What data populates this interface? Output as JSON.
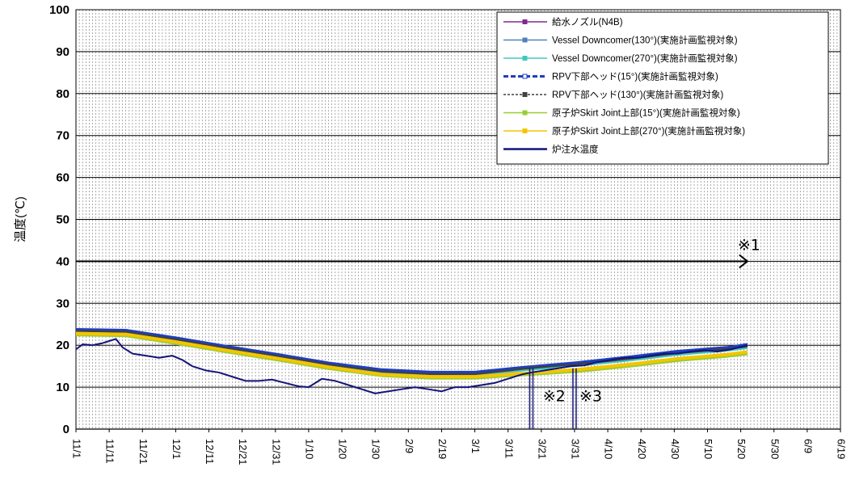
{
  "chart_data": {
    "type": "line",
    "ylabel": "温度(℃)",
    "xlabel": "",
    "ylim": [
      0,
      100
    ],
    "yticks": [
      0,
      10,
      20,
      30,
      40,
      50,
      60,
      70,
      80,
      90,
      100
    ],
    "xlim_days": [
      0,
      230
    ],
    "xtick_labels": [
      "11/1",
      "11/11",
      "11/21",
      "12/1",
      "12/11",
      "12/21",
      "12/31",
      "1/10",
      "1/20",
      "1/30",
      "2/9",
      "2/19",
      "3/1",
      "3/11",
      "3/21",
      "3/31",
      "4/10",
      "4/20",
      "4/30",
      "5/10",
      "5/20",
      "5/30",
      "6/9",
      "6/19"
    ],
    "grid": "vertical daily, horizontal every 10",
    "legend_position": "top-right",
    "series": [
      {
        "name": "給水ノズル(N4B)",
        "color": "#7f2a8c",
        "x": [
          "11/1",
          "11/16",
          "12/1",
          "12/16",
          "1/1",
          "1/16",
          "2/1",
          "2/16",
          "3/1",
          "3/16",
          "4/1",
          "4/16",
          "5/1",
          "5/16",
          "5/22"
        ],
        "y": [
          23.5,
          23.3,
          21.5,
          19.5,
          17.5,
          15.5,
          13.8,
          13.2,
          13.2,
          14.5,
          15.6,
          16.8,
          18.2,
          19.2,
          19.8
        ]
      },
      {
        "name": "Vessel Downcomer(130°)(実施計画監視対象)",
        "color": "#4f81bd",
        "x": [
          "11/1",
          "11/16",
          "12/1",
          "12/16",
          "1/1",
          "1/16",
          "2/1",
          "2/16",
          "3/1",
          "3/16",
          "4/1",
          "4/16",
          "5/1",
          "5/16",
          "5/22"
        ],
        "y": [
          23.2,
          23.0,
          21.2,
          19.2,
          17.2,
          15.2,
          13.5,
          13.0,
          13.0,
          14.2,
          15.3,
          16.5,
          17.9,
          18.9,
          19.5
        ]
      },
      {
        "name": "Vessel Downcomer(270°)(実施計画監視対象)",
        "color": "#40c8c0",
        "x": [
          "11/1",
          "11/16",
          "12/1",
          "12/16",
          "1/1",
          "1/16",
          "2/1",
          "2/16",
          "3/1",
          "3/16",
          "4/1",
          "4/16",
          "5/1",
          "5/16",
          "5/22"
        ],
        "y": [
          23.0,
          22.8,
          21.0,
          19.0,
          17.0,
          15.0,
          13.3,
          12.8,
          12.8,
          14.0,
          15.1,
          16.3,
          17.7,
          18.7,
          19.3
        ]
      },
      {
        "name": "RPV下部ヘッド(15°)(実施計画監視対象)",
        "color": "#1f3fbf",
        "x": [
          "11/1",
          "11/16",
          "12/1",
          "12/16",
          "1/1",
          "1/16",
          "2/1",
          "2/16",
          "3/1",
          "3/16",
          "4/1",
          "4/16",
          "5/1",
          "5/16",
          "5/22"
        ],
        "y": [
          23.8,
          23.6,
          21.8,
          19.8,
          17.8,
          15.8,
          14.2,
          13.6,
          13.6,
          14.8,
          15.9,
          17.2,
          18.6,
          19.5,
          20.2
        ]
      },
      {
        "name": "RPV下部ヘッド(130°)(実施計画監視対象)",
        "color": "#404040",
        "x": [
          "11/1",
          "11/16",
          "12/1",
          "12/16",
          "1/1",
          "1/16",
          "2/1",
          "2/16",
          "3/1",
          "3/16",
          "4/1",
          "4/16",
          "5/1",
          "5/16",
          "5/22"
        ],
        "y": [
          23.4,
          23.2,
          21.4,
          19.4,
          17.4,
          15.4,
          13.7,
          13.1,
          13.1,
          14.4,
          15.5,
          16.7,
          18.1,
          19.1,
          19.7
        ]
      },
      {
        "name": "原子炉Skirt Joint上部(15°)(実施計画監視対象)",
        "color": "#9acd32",
        "x": [
          "11/1",
          "11/16",
          "12/1",
          "12/16",
          "1/1",
          "1/16",
          "2/1",
          "2/16",
          "3/1",
          "3/16",
          "4/1",
          "4/16",
          "5/1",
          "5/16",
          "5/22"
        ],
        "y": [
          22.5,
          22.3,
          20.5,
          18.5,
          16.5,
          14.5,
          12.8,
          12.2,
          12.2,
          13.0,
          13.8,
          15.0,
          16.4,
          17.4,
          18.0
        ]
      },
      {
        "name": "原子炉Skirt Joint上部(270°)(実施計画監視対象)",
        "color": "#f5c400",
        "x": [
          "11/1",
          "11/16",
          "12/1",
          "12/16",
          "1/1",
          "1/16",
          "2/1",
          "2/16",
          "3/1",
          "3/16",
          "4/1",
          "4/16",
          "5/1",
          "5/16",
          "5/22"
        ],
        "y": [
          22.8,
          22.6,
          20.8,
          18.8,
          16.8,
          14.8,
          13.0,
          12.5,
          12.5,
          13.3,
          14.2,
          15.4,
          16.8,
          17.8,
          18.4
        ]
      },
      {
        "name": "炉注水温度",
        "color": "#14147a",
        "x": [
          "11/1",
          "11/3",
          "11/6",
          "11/9",
          "11/11",
          "11/13",
          "11/15",
          "11/18",
          "11/22",
          "11/26",
          "11/30",
          "12/3",
          "12/6",
          "12/10",
          "12/14",
          "12/18",
          "12/22",
          "12/26",
          "12/30",
          "1/3",
          "1/7",
          "1/10",
          "1/14",
          "1/18",
          "1/22",
          "1/26",
          "1/30",
          "2/3",
          "2/7",
          "2/11",
          "2/15",
          "2/19",
          "2/23",
          "2/27",
          "3/3",
          "3/7",
          "3/11",
          "3/15",
          "3/18",
          "3/22",
          "3/26",
          "3/30",
          "4/3",
          "4/7",
          "4/11",
          "4/15",
          "4/19",
          "4/23",
          "4/27",
          "5/1",
          "5/5",
          "5/9",
          "5/13",
          "5/17",
          "5/22"
        ],
        "y": [
          19.0,
          20.2,
          20.0,
          20.5,
          21.0,
          21.5,
          19.5,
          18.0,
          17.5,
          17.0,
          17.5,
          16.5,
          15.0,
          14.0,
          13.5,
          12.5,
          11.5,
          11.5,
          11.8,
          11.0,
          10.2,
          10.0,
          12.0,
          11.5,
          10.5,
          9.5,
          8.5,
          9.0,
          9.5,
          10.0,
          9.5,
          9.0,
          10.0,
          10.0,
          10.5,
          11.0,
          12.0,
          13.0,
          13.5,
          14.0,
          14.5,
          15.0,
          15.2,
          16.0,
          16.5,
          17.0,
          17.0,
          17.5,
          18.0,
          18.0,
          18.5,
          18.8,
          18.5,
          19.0,
          20.0
        ]
      }
    ],
    "annotations": [
      {
        "text": "※1",
        "x": "5/22",
        "y": 44,
        "arrow_from_x": "11/1",
        "arrow_to_x": "5/22",
        "arrow_y": 40
      },
      {
        "text": "※2",
        "x": "3/20",
        "y": 8,
        "gap_x": "3/18"
      },
      {
        "text": "※3",
        "x": "3/31",
        "y": 8,
        "gap_x": "3/31"
      }
    ]
  }
}
